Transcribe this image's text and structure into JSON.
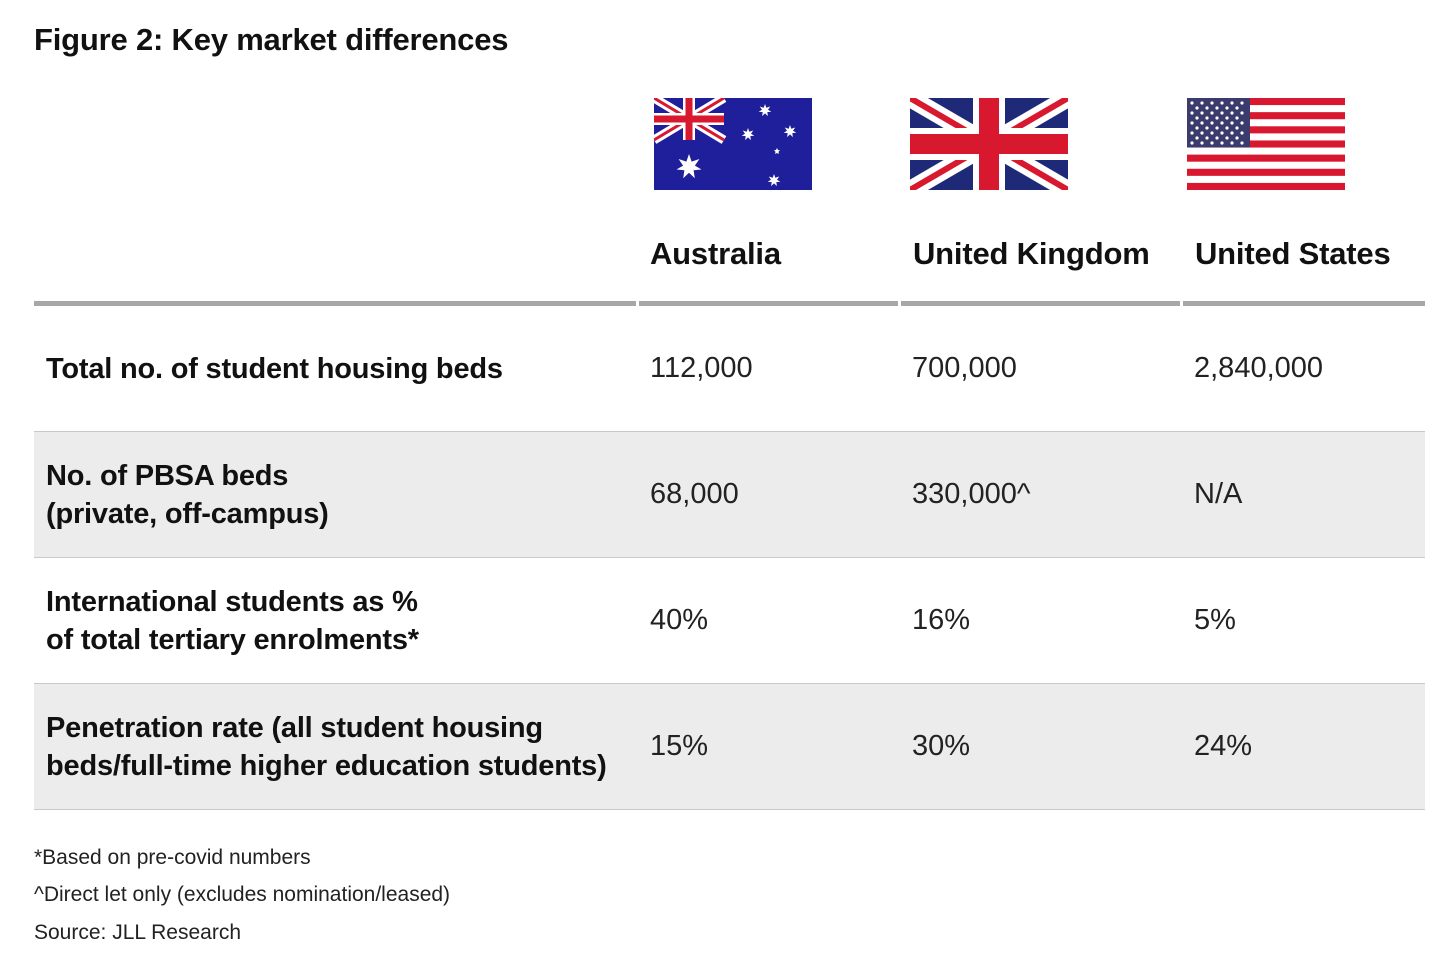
{
  "title": "Figure 2: Key market differences",
  "columns": [
    {
      "name": "Australia",
      "flag_icon": "australia-flag-icon"
    },
    {
      "name": "United Kingdom",
      "flag_icon": "uk-flag-icon"
    },
    {
      "name": "United States",
      "flag_icon": "us-flag-icon"
    }
  ],
  "rows": [
    {
      "label_lines": [
        "Total no. of student housing beds"
      ],
      "values": [
        "112,000",
        "700,000",
        "2,840,000"
      ]
    },
    {
      "label_lines": [
        "No. of PBSA beds",
        "(private, off-campus)"
      ],
      "values": [
        "68,000",
        "330,000^",
        "N/A"
      ]
    },
    {
      "label_lines": [
        "International students as %",
        "of total tertiary enrolments*"
      ],
      "values": [
        "40%",
        "16%",
        "5%"
      ]
    },
    {
      "label_lines": [
        "Penetration rate (all student housing",
        "beds/full-time higher education students)"
      ],
      "values": [
        "15%",
        "30%",
        "24%"
      ]
    }
  ],
  "notes": [
    "*Based on pre-covid numbers",
    "^Direct let only (excludes nomination/leased)",
    "Source: JLL Research"
  ],
  "colors": {
    "header_rule": "#a7a7a7",
    "shaded_row": "#ececec",
    "flag_blue_au": "#1f1f9c",
    "flag_blue_uk": "#1e2a78",
    "flag_blue_us": "#3c3b6e",
    "flag_red": "#d8182e"
  }
}
